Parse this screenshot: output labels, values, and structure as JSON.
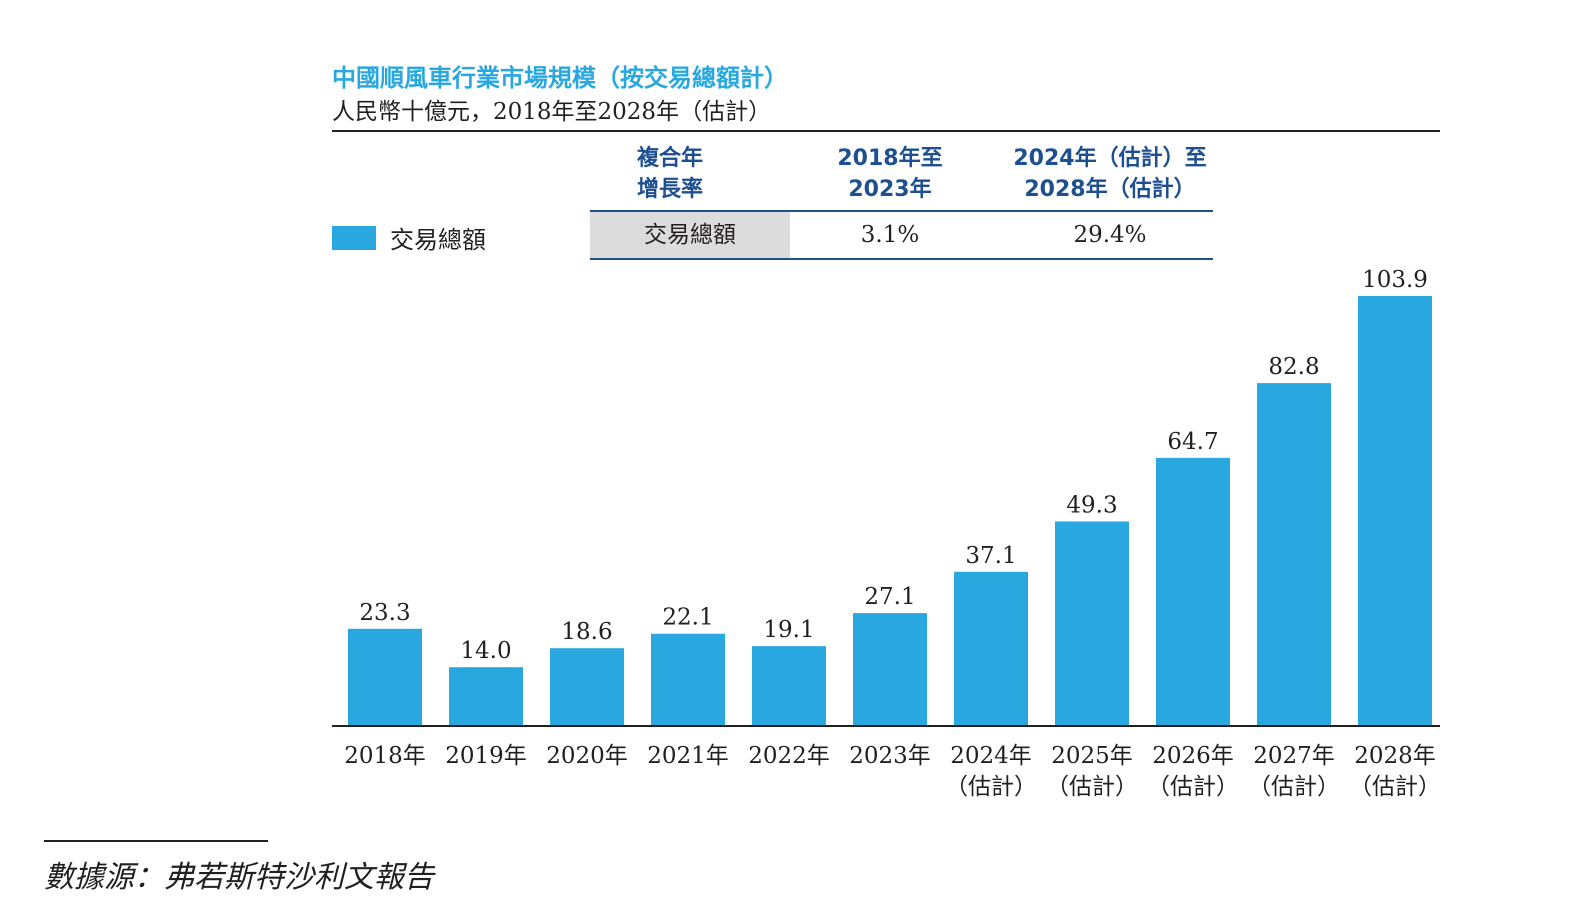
{
  "chart_data": {
    "type": "bar",
    "title": "中國順風車行業市場規模（按交易總額計）",
    "subtitle": "人民幣十億元，2018年至2028年（估計）",
    "categories": [
      "2018年",
      "2019年",
      "2020年",
      "2021年",
      "2022年",
      "2023年",
      "2024年\n（估計）",
      "2025年\n（估計）",
      "2026年\n（估計）",
      "2027年\n（估計）",
      "2028年\n（估計）"
    ],
    "series": [
      {
        "name": "交易總額",
        "values": [
          23.3,
          14.0,
          18.6,
          22.1,
          19.1,
          27.1,
          37.1,
          49.3,
          64.7,
          82.8,
          103.9
        ],
        "labels": [
          "23.3",
          "14.0",
          "18.6",
          "22.1",
          "19.1",
          "27.1",
          "37.1",
          "49.3",
          "64.7",
          "82.8",
          "103.9"
        ],
        "color": "#29a8e0"
      }
    ],
    "ylim": [
      0,
      105
    ],
    "grid": false,
    "legend": "top-left"
  },
  "cagr_table": {
    "header": "複合年\n增長率",
    "col1": "2018年至\n2023年",
    "col2": "2024年（估計）至\n2028年（估計）",
    "row_label": "交易總額",
    "val1": "3.1%",
    "val2": "29.4%"
  },
  "source": "數據源：弗若斯特沙利文報告",
  "colors": {
    "bar": "#29a8e0",
    "title": "#29a8e0",
    "table_header": "#1d4f91"
  }
}
